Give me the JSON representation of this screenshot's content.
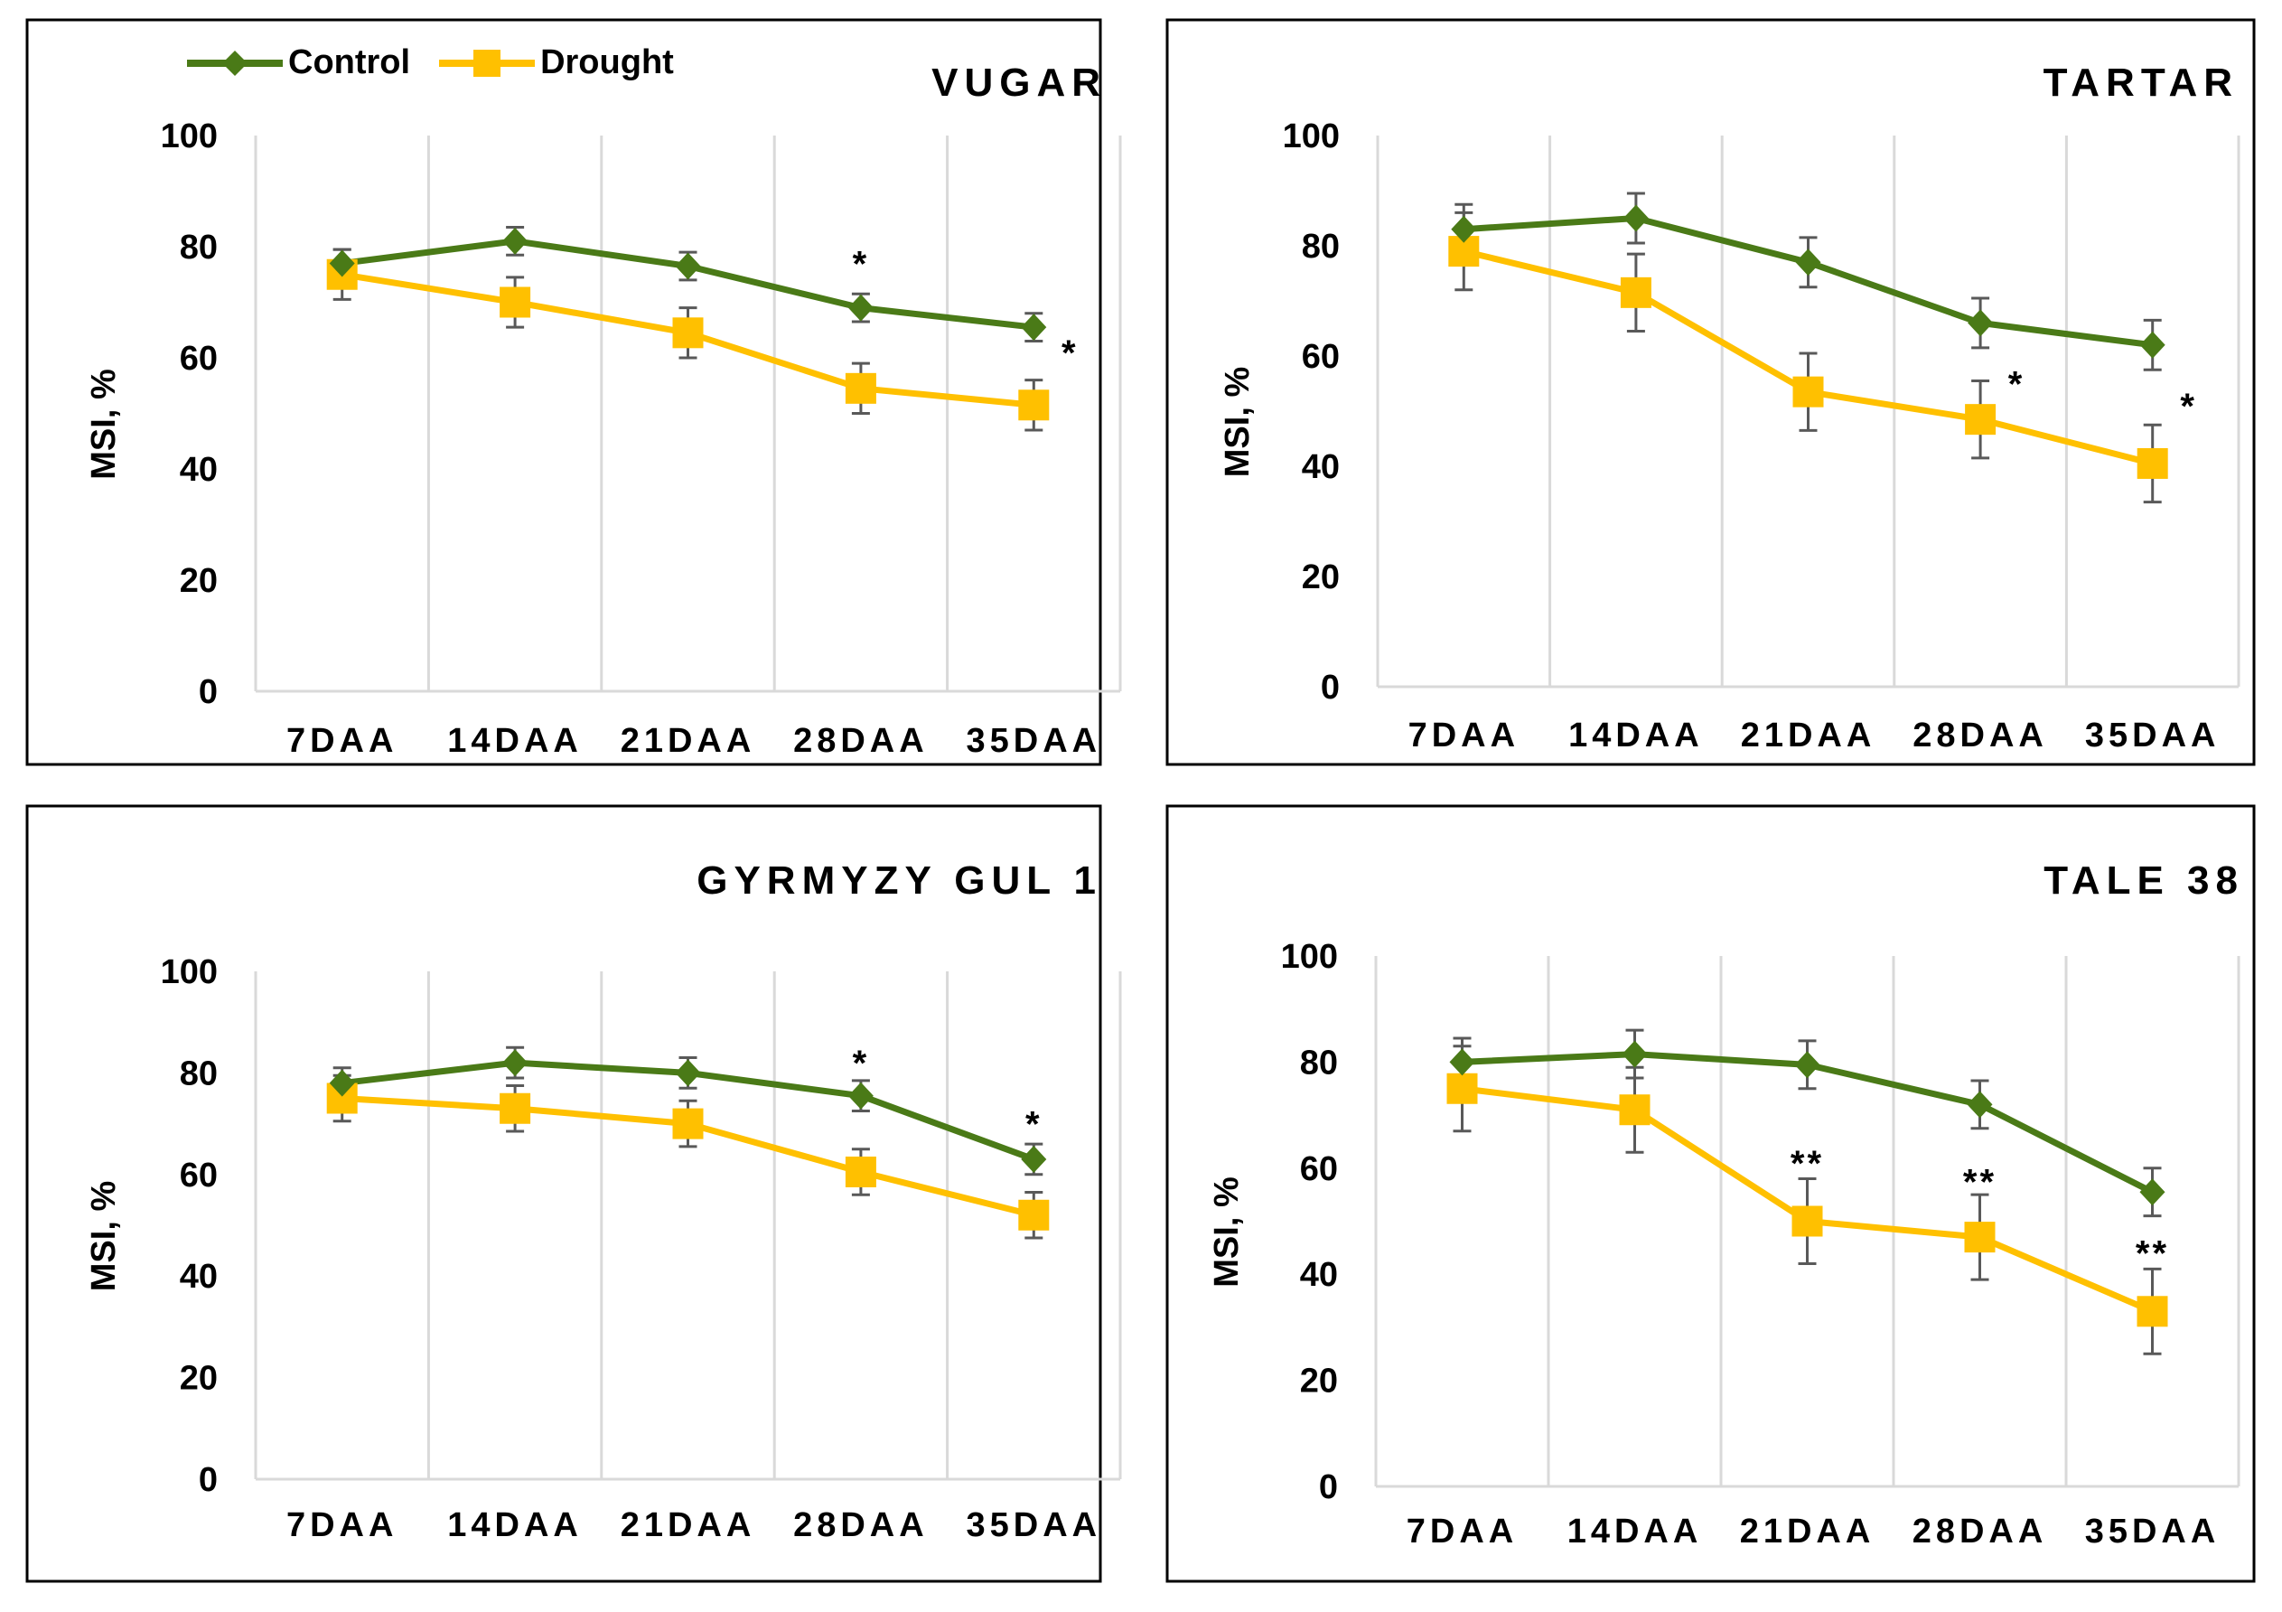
{
  "legend": {
    "control": "Control",
    "drought": "Drought"
  },
  "colors": {
    "control": "#4a7a17",
    "drought": "#ffc000",
    "grid": "#d9d9d9",
    "error": "#595959",
    "border": "#000000"
  },
  "chart_data": [
    {
      "type": "line",
      "title": "VUGAR",
      "xlabel": "",
      "ylabel": "MSI, %",
      "ylim": [
        0,
        100
      ],
      "yticks": [
        "0",
        "20",
        "40",
        "60",
        "80",
        "100"
      ],
      "categories": [
        "7DAA",
        "14DAA",
        "21DAA",
        "28DAA",
        "35DAA"
      ],
      "series": [
        {
          "name": "Control",
          "values": [
            77,
            81,
            76.5,
            69,
            65.5
          ],
          "errors": [
            2.5,
            2.5,
            2.5,
            2.5,
            2.5
          ]
        },
        {
          "name": "Drought",
          "values": [
            75,
            70,
            64.5,
            54.5,
            51.5
          ],
          "errors": [
            4.5,
            4.5,
            4.5,
            4.5,
            4.5
          ]
        }
      ],
      "annotations": [
        {
          "label": "*",
          "index": 3,
          "y": 77
        },
        {
          "label": "*",
          "index": 4,
          "y": 61,
          "offset": "right"
        }
      ]
    },
    {
      "type": "line",
      "title": "TARTAR",
      "xlabel": "",
      "ylabel": "MSI, %",
      "ylim": [
        0,
        100
      ],
      "yticks": [
        "0",
        "20",
        "40",
        "60",
        "80",
        "100"
      ],
      "categories": [
        "7DAA",
        "14DAA",
        "21DAA",
        "28DAA",
        "35DAA"
      ],
      "series": [
        {
          "name": "Control",
          "values": [
            83,
            85,
            77,
            66,
            62
          ],
          "errors": [
            4.5,
            4.5,
            4.5,
            4.5,
            4.5
          ]
        },
        {
          "name": "Drought",
          "values": [
            79,
            71.5,
            53.5,
            48.5,
            40.5
          ],
          "errors": [
            7,
            7,
            7,
            7,
            7
          ]
        }
      ],
      "annotations": [
        {
          "label": "*",
          "index": 3,
          "y": 55,
          "offset": "right"
        },
        {
          "label": "*",
          "index": 4,
          "y": 51,
          "offset": "right"
        }
      ]
    },
    {
      "type": "line",
      "title": "GYRMYZY GUL 1",
      "xlabel": "",
      "ylabel": "MSI, %",
      "ylim": [
        0,
        100
      ],
      "yticks": [
        "0",
        "20",
        "40",
        "60",
        "80",
        "100"
      ],
      "categories": [
        "7DAA",
        "14DAA",
        "21DAA",
        "28DAA",
        "35DAA"
      ],
      "series": [
        {
          "name": "Control",
          "values": [
            78,
            82,
            80,
            75.5,
            63
          ],
          "errors": [
            3,
            3,
            3,
            3,
            3
          ]
        },
        {
          "name": "Drought",
          "values": [
            75,
            73,
            70,
            60.5,
            52
          ],
          "errors": [
            4.5,
            4.5,
            4.5,
            4.5,
            4.5
          ]
        }
      ],
      "annotations": [
        {
          "label": "*",
          "index": 3,
          "y": 82
        },
        {
          "label": "*",
          "index": 4,
          "y": 70
        }
      ]
    },
    {
      "type": "line",
      "title": "TALE 38",
      "xlabel": "",
      "ylabel": "MSI, %",
      "ylim": [
        0,
        100
      ],
      "yticks": [
        "0",
        "20",
        "40",
        "60",
        "80",
        "100"
      ],
      "categories": [
        "7DAA",
        "14DAA",
        "21DAA",
        "28DAA",
        "35DAA"
      ],
      "series": [
        {
          "name": "Control",
          "values": [
            80,
            81.5,
            79.5,
            72,
            55.5
          ],
          "errors": [
            4.5,
            4.5,
            4.5,
            4.5,
            4.5
          ]
        },
        {
          "name": "Drought",
          "values": [
            75,
            71,
            50,
            47,
            33
          ],
          "errors": [
            8,
            8,
            8,
            8,
            8
          ]
        }
      ],
      "annotations": [
        {
          "label": "**",
          "index": 2,
          "y": 61
        },
        {
          "label": "**",
          "index": 3,
          "y": 57.5
        },
        {
          "label": "**",
          "index": 4,
          "y": 44
        }
      ]
    }
  ]
}
